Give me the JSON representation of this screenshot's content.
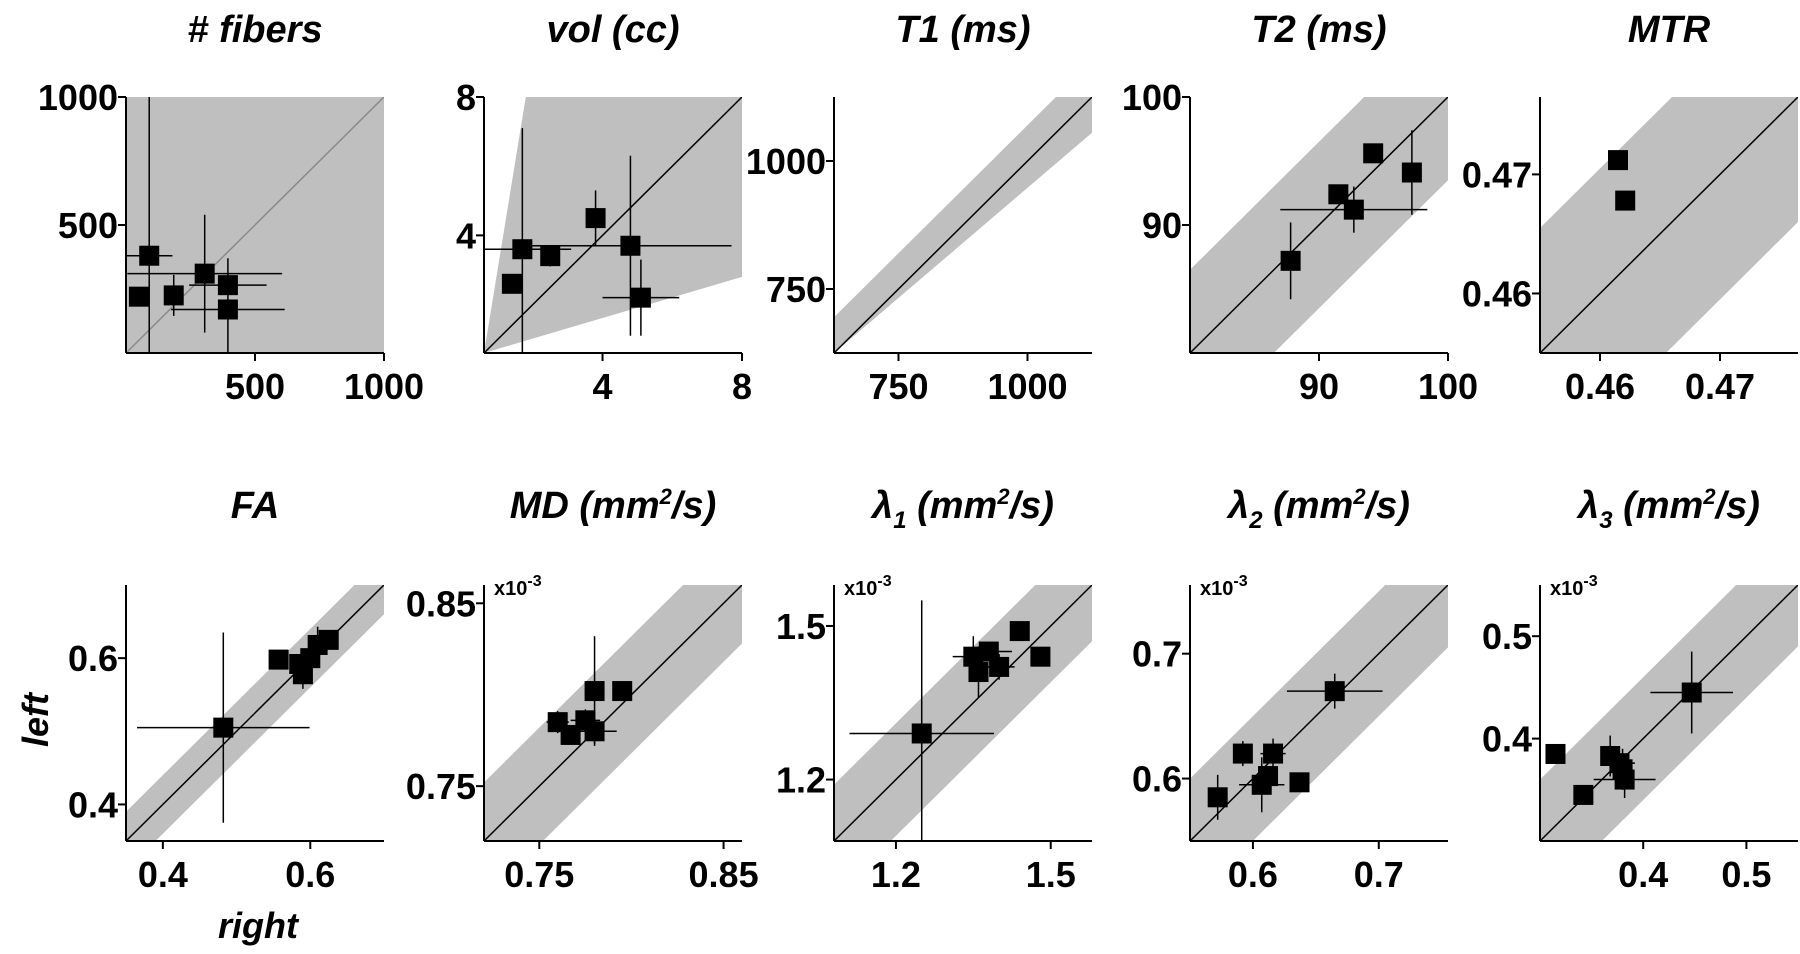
{
  "figure": {
    "xlabel": "right",
    "ylabel": "left"
  },
  "chart_data": [
    {
      "type": "scatter",
      "title": "# fibers",
      "title_sub": "",
      "title_unit": "",
      "xlim": [
        0,
        1000
      ],
      "ylim": [
        0,
        1000
      ],
      "xticks": [
        500,
        1000
      ],
      "yticks": [
        500,
        1000
      ],
      "xtick_labels": [
        "500",
        "1000"
      ],
      "ytick_labels": [
        "500",
        "1000"
      ],
      "exponent": "",
      "band": [
        [
          0,
          0
        ],
        [
          1000,
          0
        ],
        [
          1000,
          1000
        ],
        [
          0,
          1000
        ]
      ],
      "diag_gray": true,
      "points": [
        {
          "x": 50,
          "y": 220,
          "xerr": 0,
          "yerr": 0
        },
        {
          "x": 90,
          "y": 380,
          "xerr": 90,
          "yerr": 620
        },
        {
          "x": 185,
          "y": 225,
          "xerr": 0,
          "yerr": 80
        },
        {
          "x": 305,
          "y": 310,
          "xerr": 300,
          "yerr": 230
        },
        {
          "x": 395,
          "y": 265,
          "xerr": 150,
          "yerr": 0
        },
        {
          "x": 395,
          "y": 170,
          "xerr": 220,
          "yerr": 200
        }
      ]
    },
    {
      "type": "scatter",
      "title": "vol (cc)",
      "title_sub": "",
      "title_unit": "",
      "xlim": [
        0.6,
        8
      ],
      "ylim": [
        0.6,
        8
      ],
      "xticks": [
        4,
        8
      ],
      "yticks": [
        4,
        8
      ],
      "xtick_labels": [
        "4",
        "8"
      ],
      "ytick_labels": [
        "4",
        "8"
      ],
      "exponent": "",
      "band": [
        [
          0.6,
          0.6
        ],
        [
          1.8,
          8
        ],
        [
          8,
          8
        ],
        [
          8,
          2.8
        ],
        [
          0.6,
          0.6
        ]
      ],
      "diag_gray": false,
      "points": [
        {
          "x": 1.4,
          "y": 2.6,
          "xerr": 0,
          "yerr": 0
        },
        {
          "x": 1.7,
          "y": 3.6,
          "xerr": 1.4,
          "yerr": 3.5
        },
        {
          "x": 2.5,
          "y": 3.4,
          "xerr": 0,
          "yerr": 0.3
        },
        {
          "x": 3.8,
          "y": 4.5,
          "xerr": 0,
          "yerr": 0.8
        },
        {
          "x": 4.8,
          "y": 3.7,
          "xerr": 2.9,
          "yerr": 2.6
        },
        {
          "x": 5.1,
          "y": 2.2,
          "xerr": 1.1,
          "yerr": 1.1
        }
      ]
    },
    {
      "type": "scatter",
      "title": "T1 (ms)",
      "title_sub": "",
      "title_unit": "",
      "xlim": [
        625,
        1125
      ],
      "ylim": [
        625,
        1125
      ],
      "xticks": [
        750,
        1000
      ],
      "yticks": [
        750,
        1000
      ],
      "xtick_labels": [
        "750",
        "1000"
      ],
      "ytick_labels": [
        "750",
        "1000"
      ],
      "exponent": "",
      "band": [
        [
          625,
          625
        ],
        [
          625,
          695
        ],
        [
          1125,
          1195
        ],
        [
          1125,
          1055
        ]
      ],
      "diag_gray": false,
      "points": []
    },
    {
      "type": "scatter",
      "title": "T2 (ms)",
      "title_sub": "",
      "title_unit": "",
      "xlim": [
        80,
        100
      ],
      "ylim": [
        80,
        100
      ],
      "xticks": [
        90,
        100
      ],
      "yticks": [
        90,
        100
      ],
      "xtick_labels": [
        "90",
        "100"
      ],
      "ytick_labels": [
        "90",
        "100"
      ],
      "exponent": "",
      "band": [
        [
          80,
          73.5
        ],
        [
          80,
          86.5
        ],
        [
          100,
          106.5
        ],
        [
          100,
          93.5
        ]
      ],
      "diag_gray": false,
      "points": [
        {
          "x": 87.8,
          "y": 87.2,
          "xerr": 0,
          "yerr": 3.0
        },
        {
          "x": 91.5,
          "y": 92.4,
          "xerr": 0,
          "yerr": 0
        },
        {
          "x": 92.7,
          "y": 91.2,
          "xerr": 5.7,
          "yerr": 1.8
        },
        {
          "x": 94.2,
          "y": 95.6,
          "xerr": 0,
          "yerr": 0
        },
        {
          "x": 97.2,
          "y": 94.1,
          "xerr": 0,
          "yerr": 3.3
        }
      ]
    },
    {
      "type": "scatter",
      "title": "MTR",
      "title_sub": "",
      "title_unit": "",
      "xlim": [
        0.455,
        0.4765
      ],
      "ylim": [
        0.455,
        0.4765
      ],
      "xticks": [
        0.46,
        0.47
      ],
      "yticks": [
        0.46,
        0.47
      ],
      "xtick_labels": [
        "0.46",
        "0.47"
      ],
      "ytick_labels": [
        "0.46",
        "0.47"
      ],
      "exponent": "",
      "band": [
        [
          0.455,
          0.4445
        ],
        [
          0.455,
          0.4655
        ],
        [
          0.4765,
          0.487
        ],
        [
          0.4765,
          0.466
        ]
      ],
      "diag_gray": false,
      "points": [
        {
          "x": 0.4615,
          "y": 0.4712,
          "xerr": 0,
          "yerr": 0.0006
        },
        {
          "x": 0.4621,
          "y": 0.4678,
          "xerr": 0,
          "yerr": 0
        }
      ]
    },
    {
      "type": "scatter",
      "title": "FA",
      "title_sub": "",
      "title_unit": "",
      "xlim": [
        0.35,
        0.7
      ],
      "ylim": [
        0.35,
        0.7
      ],
      "xticks": [
        0.4,
        0.6
      ],
      "yticks": [
        0.4,
        0.6
      ],
      "xtick_labels": [
        "0.4",
        "0.6"
      ],
      "ytick_labels": [
        "0.4",
        "0.6"
      ],
      "exponent": "",
      "band": [
        [
          0.35,
          0.31
        ],
        [
          0.35,
          0.39
        ],
        [
          0.7,
          0.74
        ],
        [
          0.7,
          0.66
        ]
      ],
      "diag_gray": false,
      "points": [
        {
          "x": 0.482,
          "y": 0.505,
          "xerr": 0.117,
          "yerr": 0.13
        },
        {
          "x": 0.557,
          "y": 0.598,
          "xerr": 0,
          "yerr": 0
        },
        {
          "x": 0.585,
          "y": 0.592,
          "xerr": 0,
          "yerr": 0
        },
        {
          "x": 0.59,
          "y": 0.578,
          "xerr": 0,
          "yerr": 0.02
        },
        {
          "x": 0.6,
          "y": 0.6,
          "xerr": 0,
          "yerr": 0
        },
        {
          "x": 0.61,
          "y": 0.618,
          "xerr": 0,
          "yerr": 0.025
        },
        {
          "x": 0.625,
          "y": 0.625,
          "xerr": 0,
          "yerr": 0
        }
      ]
    },
    {
      "type": "scatter",
      "title": "MD (mm",
      "title_sub": "",
      "title_unit": "/s)",
      "title_sup": "2",
      "xlim": [
        0.72,
        0.86
      ],
      "ylim": [
        0.72,
        0.86
      ],
      "xticks": [
        0.75,
        0.85
      ],
      "yticks": [
        0.75,
        0.85
      ],
      "xtick_labels": [
        "0.75",
        "0.85"
      ],
      "ytick_labels": [
        "0.75",
        "0.85"
      ],
      "exponent": "-3",
      "band": [
        [
          0.72,
          0.688
        ],
        [
          0.72,
          0.752
        ],
        [
          0.86,
          0.892
        ],
        [
          0.86,
          0.828
        ]
      ],
      "diag_gray": false,
      "points": [
        {
          "x": 0.76,
          "y": 0.785,
          "xerr": 0.006,
          "yerr": 0.006
        },
        {
          "x": 0.767,
          "y": 0.778,
          "xerr": 0,
          "yerr": 0
        },
        {
          "x": 0.775,
          "y": 0.786,
          "xerr": 0.008,
          "yerr": 0.006
        },
        {
          "x": 0.78,
          "y": 0.802,
          "xerr": 0,
          "yerr": 0.03
        },
        {
          "x": 0.78,
          "y": 0.78,
          "xerr": 0.012,
          "yerr": 0.007
        },
        {
          "x": 0.795,
          "y": 0.802,
          "xerr": 0,
          "yerr": 0
        }
      ]
    },
    {
      "type": "scatter",
      "title": "λ",
      "title_sub": "1",
      "title_unit": " (mm",
      "title_sup": "2",
      "title_tail": "/s)",
      "xlim": [
        1.08,
        1.58
      ],
      "ylim": [
        1.08,
        1.58
      ],
      "xticks": [
        1.2,
        1.5
      ],
      "yticks": [
        1.2,
        1.5
      ],
      "xtick_labels": [
        "1.2",
        "1.5"
      ],
      "ytick_labels": [
        "1.2",
        "1.5"
      ],
      "exponent": "-3",
      "band": [
        [
          1.08,
          0.97
        ],
        [
          1.08,
          1.19
        ],
        [
          1.58,
          1.69
        ],
        [
          1.58,
          1.47
        ]
      ],
      "diag_gray": false,
      "points": [
        {
          "x": 1.25,
          "y": 1.29,
          "xerr": 0.14,
          "yerr": 0.26
        },
        {
          "x": 1.35,
          "y": 1.44,
          "xerr": 0.04,
          "yerr": 0.04
        },
        {
          "x": 1.36,
          "y": 1.41,
          "xerr": 0,
          "yerr": 0.05
        },
        {
          "x": 1.38,
          "y": 1.45,
          "xerr": 0.045,
          "yerr": 0
        },
        {
          "x": 1.4,
          "y": 1.42,
          "xerr": 0.03,
          "yerr": 0.025
        },
        {
          "x": 1.44,
          "y": 1.49,
          "xerr": 0,
          "yerr": 0
        },
        {
          "x": 1.48,
          "y": 1.44,
          "xerr": 0,
          "yerr": 0
        }
      ]
    },
    {
      "type": "scatter",
      "title": "λ",
      "title_sub": "2",
      "title_unit": " (mm",
      "title_sup": "2",
      "title_tail": "/s)",
      "xlim": [
        0.55,
        0.755
      ],
      "ylim": [
        0.55,
        0.755
      ],
      "xticks": [
        0.6,
        0.7
      ],
      "yticks": [
        0.6,
        0.7
      ],
      "xtick_labels": [
        "0.6",
        "0.7"
      ],
      "ytick_labels": [
        "0.6",
        "0.7"
      ],
      "exponent": "-3",
      "band": [
        [
          0.55,
          0.5
        ],
        [
          0.55,
          0.6
        ],
        [
          0.755,
          0.805
        ],
        [
          0.755,
          0.705
        ]
      ],
      "diag_gray": false,
      "points": [
        {
          "x": 0.572,
          "y": 0.585,
          "xerr": 0,
          "yerr": 0.018
        },
        {
          "x": 0.592,
          "y": 0.62,
          "xerr": 0,
          "yerr": 0.01
        },
        {
          "x": 0.607,
          "y": 0.595,
          "xerr": 0.018,
          "yerr": 0.022
        },
        {
          "x": 0.612,
          "y": 0.602,
          "xerr": 0,
          "yerr": 0
        },
        {
          "x": 0.616,
          "y": 0.62,
          "xerr": 0.01,
          "yerr": 0.012
        },
        {
          "x": 0.637,
          "y": 0.597,
          "xerr": 0,
          "yerr": 0
        },
        {
          "x": 0.665,
          "y": 0.67,
          "xerr": 0.038,
          "yerr": 0.014
        }
      ]
    },
    {
      "type": "scatter",
      "title": "λ",
      "title_sub": "3",
      "title_unit": " (mm",
      "title_sup": "2",
      "title_tail": "/s)",
      "xlim": [
        0.3,
        0.55
      ],
      "ylim": [
        0.3,
        0.55
      ],
      "xticks": [
        0.4,
        0.5
      ],
      "yticks": [
        0.4,
        0.5
      ],
      "xtick_labels": [
        "0.4",
        "0.5"
      ],
      "ytick_labels": [
        "0.4",
        "0.5"
      ],
      "exponent": "-3",
      "band": [
        [
          0.3,
          0.24
        ],
        [
          0.3,
          0.36
        ],
        [
          0.55,
          0.61
        ],
        [
          0.55,
          0.49
        ]
      ],
      "diag_gray": false,
      "points": [
        {
          "x": 0.315,
          "y": 0.385,
          "xerr": 0,
          "yerr": 0
        },
        {
          "x": 0.342,
          "y": 0.345,
          "xerr": 0,
          "yerr": 0
        },
        {
          "x": 0.368,
          "y": 0.383,
          "xerr": 0,
          "yerr": 0.02
        },
        {
          "x": 0.377,
          "y": 0.376,
          "xerr": 0.015,
          "yerr": 0
        },
        {
          "x": 0.38,
          "y": 0.37,
          "xerr": 0,
          "yerr": 0.02
        },
        {
          "x": 0.382,
          "y": 0.36,
          "xerr": 0.03,
          "yerr": 0.018
        },
        {
          "x": 0.447,
          "y": 0.445,
          "xerr": 0.04,
          "yerr": 0.04
        }
      ]
    }
  ]
}
